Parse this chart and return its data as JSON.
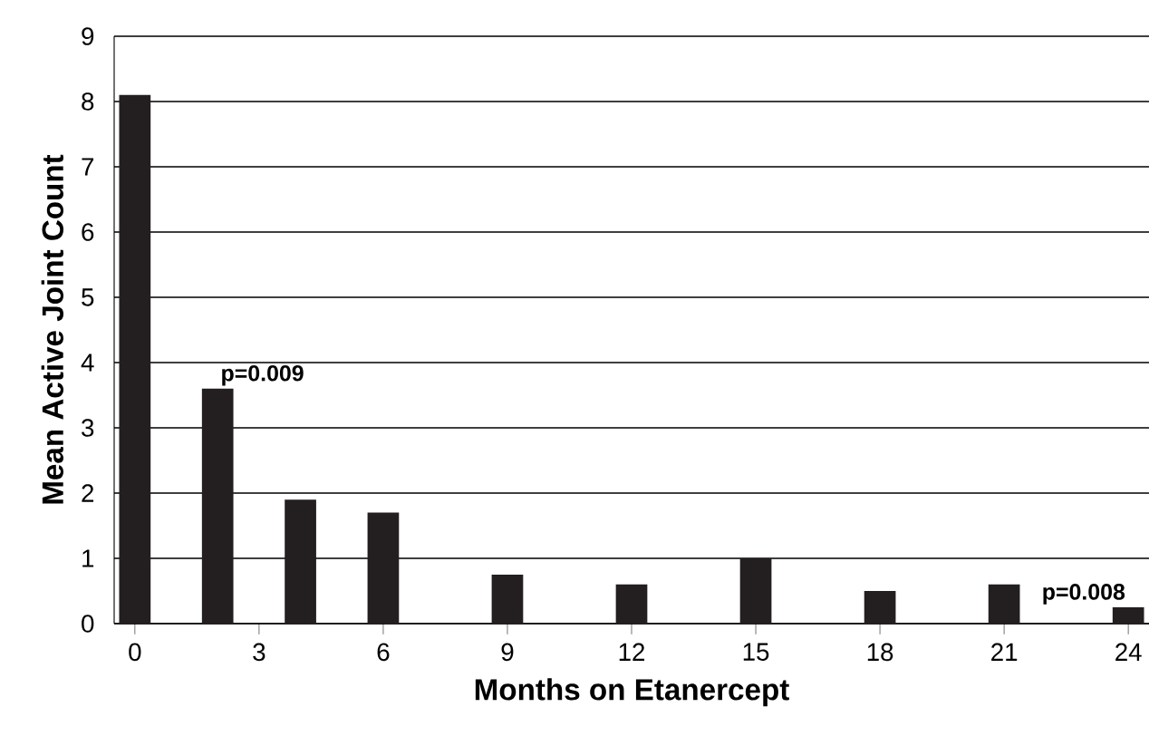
{
  "chart_data": {
    "type": "bar",
    "xlabel": "Months on Etanercept",
    "ylabel": "Mean Active Joint Count",
    "x": [
      0,
      2,
      4,
      6,
      9,
      12,
      15,
      18,
      21,
      24
    ],
    "values": [
      8.1,
      3.6,
      1.9,
      1.7,
      0.75,
      0.6,
      1.0,
      0.5,
      0.6,
      0.25
    ],
    "color": "#231f20",
    "xlim": [
      -0.5,
      24.5
    ],
    "xticks": [
      0,
      3,
      6,
      9,
      12,
      15,
      18,
      21,
      24
    ],
    "ylim": [
      0,
      9
    ],
    "yticks": [
      0,
      1,
      2,
      3,
      4,
      5,
      6,
      7,
      8,
      9
    ],
    "grid": "y",
    "annotations": [
      {
        "text": "p=0.009",
        "x": 2,
        "y": 3.6
      },
      {
        "text": "p=0.008",
        "x": 24,
        "y": 0.25
      }
    ]
  }
}
